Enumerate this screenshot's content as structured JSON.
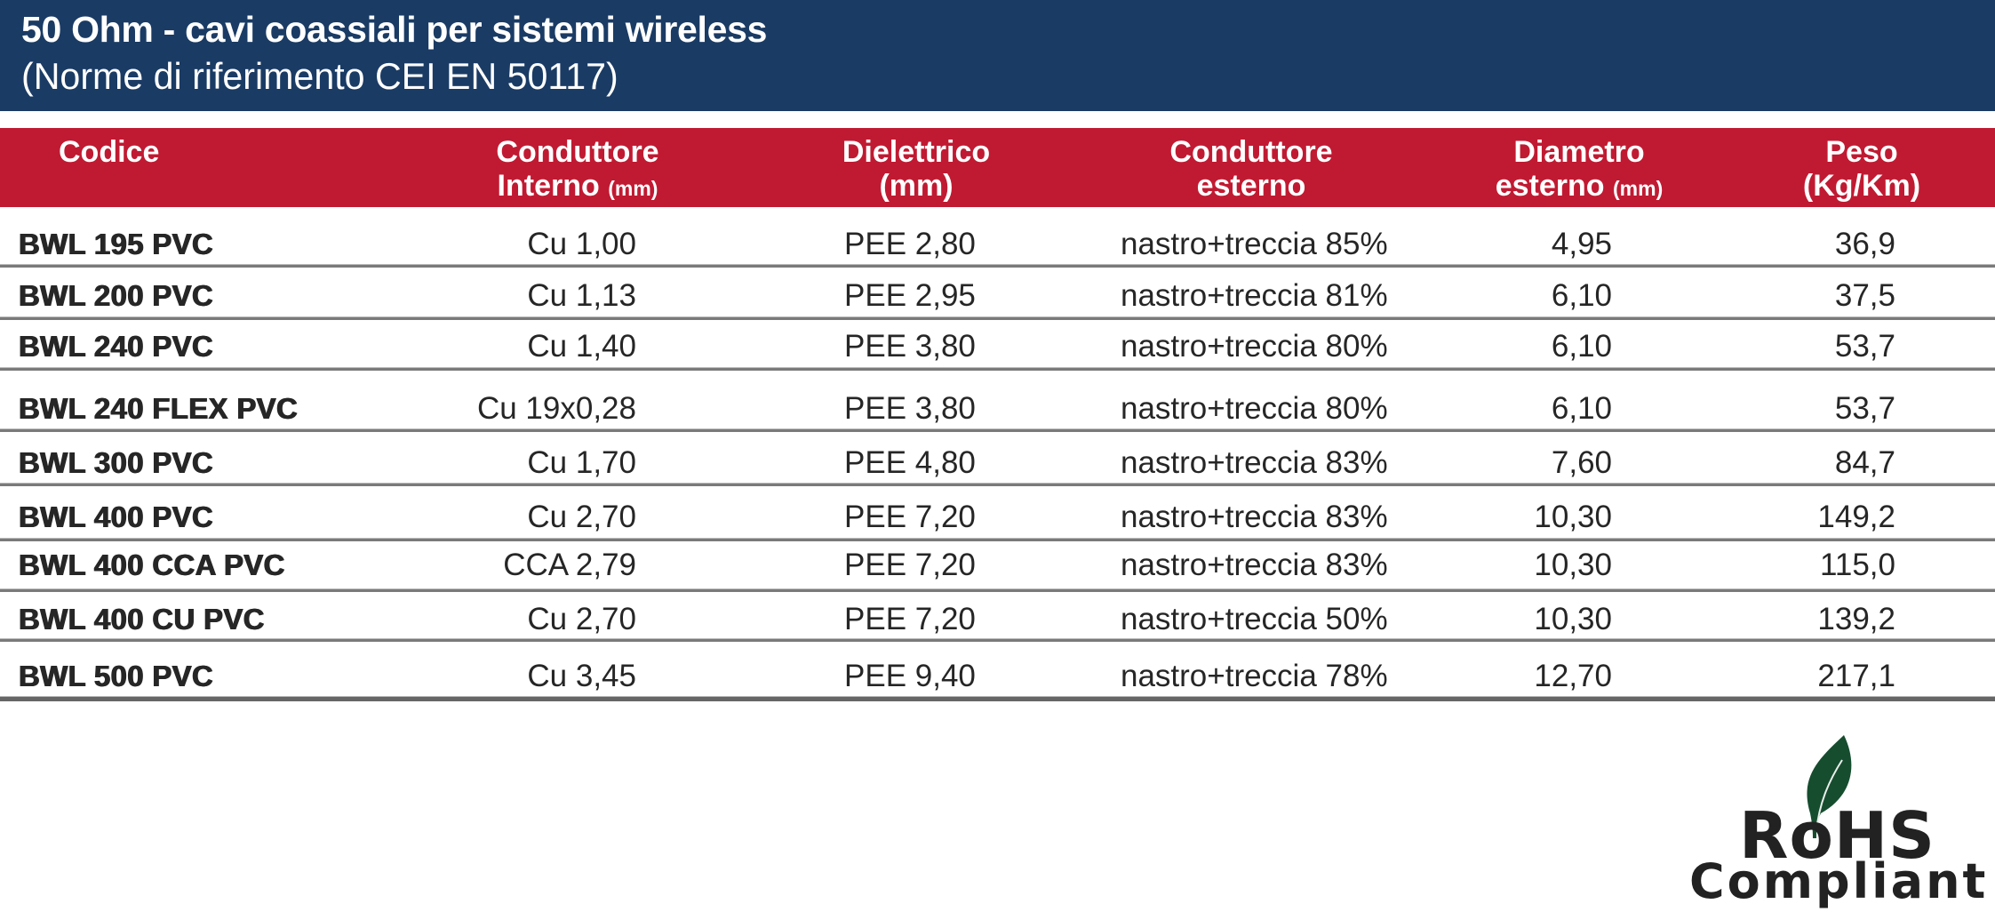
{
  "header": {
    "title": "50 Ohm - cavi coassiali per sistemi wireless",
    "subtitle": "(Norme di riferimento CEI EN 50117)"
  },
  "colors": {
    "title_band": "#1a3b64",
    "header_band": "#c01a32",
    "leaf": "#164d2f",
    "text": "#262626"
  },
  "table": {
    "columns": [
      {
        "line1": "Codice",
        "line2": "",
        "unit": ""
      },
      {
        "line1": "Conduttore",
        "line2": "Interno",
        "unit": "(mm)"
      },
      {
        "line1": "Dielettrico",
        "line2": "(mm)",
        "unit": ""
      },
      {
        "line1": "Conduttore",
        "line2": "esterno",
        "unit": ""
      },
      {
        "line1": "Diametro",
        "line2": "esterno",
        "unit": "(mm)"
      },
      {
        "line1": "Peso",
        "line2": "(Kg/Km)",
        "unit": ""
      }
    ],
    "rows": [
      [
        "BWL 195 PVC",
        "Cu 1,00",
        "PEE 2,80",
        "nastro+treccia 85%",
        "4,95",
        "36,9"
      ],
      [
        "BWL 200 PVC",
        "Cu 1,13",
        "PEE 2,95",
        "nastro+treccia 81%",
        "6,10",
        "37,5"
      ],
      [
        "BWL 240 PVC",
        "Cu 1,40",
        "PEE 3,80",
        "nastro+treccia 80%",
        "6,10",
        "53,7"
      ],
      [
        "BWL 240 FLEX PVC",
        "Cu 19x0,28",
        "PEE 3,80",
        "nastro+treccia 80%",
        "6,10",
        "53,7"
      ],
      [
        "BWL 300 PVC",
        "Cu 1,70",
        "PEE 4,80",
        "nastro+treccia 83%",
        "7,60",
        "84,7"
      ],
      [
        "BWL 400 PVC",
        "Cu 2,70",
        "PEE 7,20",
        "nastro+treccia 83%",
        "10,30",
        "149,2"
      ],
      [
        "BWL 400 CCA PVC",
        "CCA 2,79",
        "PEE 7,20",
        "nastro+treccia 83%",
        "10,30",
        "115,0"
      ],
      [
        "BWL 400 CU PVC",
        "Cu 2,70",
        "PEE 7,20",
        "nastro+treccia 50%",
        "10,30",
        "139,2"
      ],
      [
        "BWL 500 PVC",
        "Cu 3,45",
        "PEE 9,40",
        "nastro+treccia 78%",
        "12,70",
        "217,1"
      ]
    ]
  },
  "logo": {
    "line1": "RoHS",
    "line2": "Compliant",
    "icon": "leaf-icon"
  }
}
